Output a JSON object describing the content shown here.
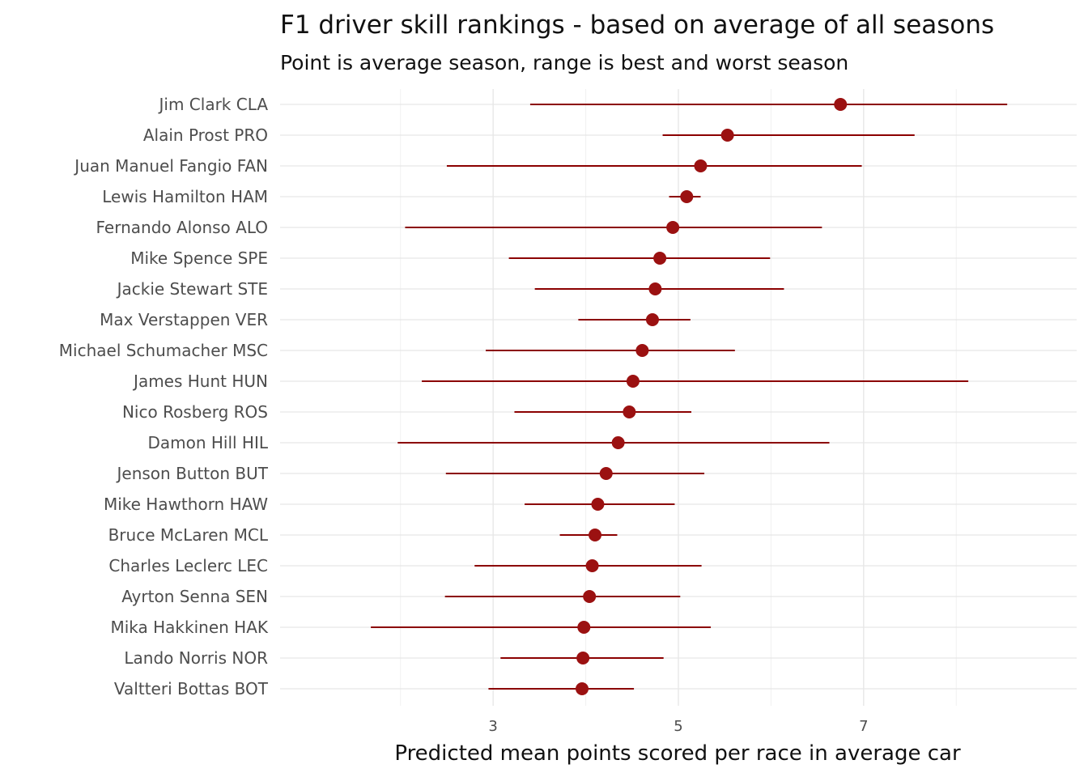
{
  "chart_data": {
    "type": "scatter",
    "title": "F1 driver skill rankings - based on average of all seasons",
    "subtitle": "Point is average season, range is best and worst season",
    "xlabel": "Predicted mean points scored per race in average car",
    "ylabel": "",
    "xlim": [
      0.7,
      9.3
    ],
    "x_ticks": [
      3,
      5,
      7
    ],
    "x_minor_grid": [
      2,
      4,
      6,
      8
    ],
    "grid": true,
    "legend": "none",
    "point_color": "#9b1111",
    "range_color": "#8b0000",
    "drivers": [
      {
        "label": "Jim Clark CLA",
        "mean": 6.75,
        "min": 3.4,
        "max": 8.55
      },
      {
        "label": "Alain Prost PRO",
        "mean": 5.53,
        "min": 4.83,
        "max": 7.55
      },
      {
        "label": "Juan Manuel Fangio FAN",
        "mean": 5.24,
        "min": 2.5,
        "max": 6.98
      },
      {
        "label": "Lewis Hamilton HAM",
        "mean": 5.09,
        "min": 4.9,
        "max": 5.24
      },
      {
        "label": "Fernando Alonso ALO",
        "mean": 4.94,
        "min": 2.05,
        "max": 6.55
      },
      {
        "label": "Mike Spence SPE",
        "mean": 4.8,
        "min": 3.17,
        "max": 5.99
      },
      {
        "label": "Jackie Stewart STE",
        "mean": 4.75,
        "min": 3.45,
        "max": 6.14
      },
      {
        "label": "Max Verstappen VER",
        "mean": 4.72,
        "min": 3.92,
        "max": 5.13
      },
      {
        "label": "Michael Schumacher MSC",
        "mean": 4.61,
        "min": 2.92,
        "max": 5.61
      },
      {
        "label": "James Hunt HUN",
        "mean": 4.51,
        "min": 2.23,
        "max": 8.13
      },
      {
        "label": "Nico Rosberg ROS",
        "mean": 4.47,
        "min": 3.23,
        "max": 5.14
      },
      {
        "label": "Damon Hill HIL",
        "mean": 4.35,
        "min": 1.97,
        "max": 6.63
      },
      {
        "label": "Jenson Button BUT",
        "mean": 4.22,
        "min": 2.49,
        "max": 5.28
      },
      {
        "label": "Mike Hawthorn HAW",
        "mean": 4.13,
        "min": 3.34,
        "max": 4.96
      },
      {
        "label": "Bruce McLaren MCL",
        "mean": 4.1,
        "min": 3.72,
        "max": 4.34
      },
      {
        "label": "Charles Leclerc LEC",
        "mean": 4.07,
        "min": 2.8,
        "max": 5.25
      },
      {
        "label": "Ayrton Senna SEN",
        "mean": 4.04,
        "min": 2.48,
        "max": 5.02
      },
      {
        "label": "Mika Hakkinen HAK",
        "mean": 3.98,
        "min": 1.68,
        "max": 5.35
      },
      {
        "label": "Lando Norris NOR",
        "mean": 3.97,
        "min": 3.08,
        "max": 4.84
      },
      {
        "label": "Valtteri Bottas BOT",
        "mean": 3.96,
        "min": 2.95,
        "max": 4.52
      }
    ]
  }
}
